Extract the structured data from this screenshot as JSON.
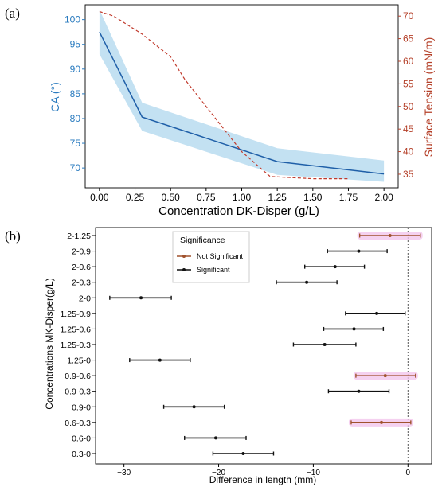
{
  "colors": {
    "ca_line": "#1f5fa8",
    "ca_band": "#b9dcf0",
    "ca_axis": "#2a7bbf",
    "st_line": "#c0392b",
    "st_axis": "#b5412a",
    "sig": "#111111",
    "nonsig": "#a0522d",
    "nonsig_glow": "#f3c6ec",
    "zero_line": "#444444"
  },
  "chart_data": [
    {
      "panel_label": "(a)",
      "type": "line",
      "xlabel": "Concentration DK-Disper (g/L)",
      "ylabel_left": "CA (°)",
      "ylabel_right": "Surface Tension (mN/m)",
      "xlim": [
        -0.1,
        2.1
      ],
      "ylim_left": [
        66,
        103
      ],
      "ylim_right": [
        32,
        72.5
      ],
      "x_ticks": [
        0.0,
        0.25,
        0.5,
        0.75,
        1.0,
        1.25,
        1.5,
        1.75,
        2.0
      ],
      "x_tick_labels": [
        "0.00",
        "0.25",
        "0.50",
        "0.75",
        "1.00",
        "1.25",
        "1.50",
        "1.75",
        "2.00"
      ],
      "y_left_ticks": [
        70,
        75,
        80,
        85,
        90,
        95,
        100
      ],
      "y_right_ticks": [
        35,
        40,
        45,
        50,
        55,
        60,
        65,
        70
      ],
      "series": [
        {
          "name": "CA",
          "axis": "left",
          "style": "solid",
          "x": [
            0.0,
            0.3,
            1.25,
            2.0
          ],
          "y": [
            97.5,
            80.3,
            71.3,
            68.8
          ],
          "band_upper": [
            102.0,
            83.2,
            74.0,
            71.5
          ],
          "band_lower": [
            93.0,
            77.5,
            68.6,
            67.2
          ]
        },
        {
          "name": "Surface Tension",
          "axis": "right",
          "style": "dashed",
          "x": [
            0.0,
            0.1,
            0.3,
            0.5,
            0.6,
            0.75,
            1.0,
            1.2,
            1.5,
            1.75
          ],
          "y": [
            71.0,
            70.0,
            66.0,
            61.0,
            56.0,
            50.0,
            40.0,
            34.5,
            34.0,
            34.0
          ]
        }
      ]
    },
    {
      "panel_label": "(b)",
      "type": "errorbar",
      "xlabel": "Difference in length (mm)",
      "ylabel": "Concentrations MK-Disper(g/L)",
      "xlim": [
        -33,
        2.5
      ],
      "x_ticks": [
        -30,
        -20,
        -10,
        0
      ],
      "x_tick_labels": [
        "−30",
        "−20",
        "−10",
        "0"
      ],
      "legend": {
        "title": "Significance",
        "entries": [
          "Not Significant",
          "Significant"
        ],
        "placement": "top-center"
      },
      "rows": [
        {
          "label": "2-1.25",
          "mean": -1.9,
          "low": -5.1,
          "high": 1.3,
          "significant": false
        },
        {
          "label": "2-0.9",
          "mean": -5.2,
          "low": -8.5,
          "high": -2.2,
          "significant": true
        },
        {
          "label": "2-0.6",
          "mean": -7.7,
          "low": -10.9,
          "high": -4.6,
          "significant": true
        },
        {
          "label": "2-0.3",
          "mean": -10.7,
          "low": -13.9,
          "high": -7.5,
          "significant": true
        },
        {
          "label": "2-0",
          "mean": -28.2,
          "low": -31.5,
          "high": -25.0,
          "significant": true
        },
        {
          "label": "1.25-0.9",
          "mean": -3.3,
          "low": -6.6,
          "high": -0.3,
          "significant": true
        },
        {
          "label": "1.25-0.6",
          "mean": -5.7,
          "low": -8.9,
          "high": -2.6,
          "significant": true
        },
        {
          "label": "1.25-0.3",
          "mean": -8.8,
          "low": -12.1,
          "high": -5.5,
          "significant": true
        },
        {
          "label": "1.25-0",
          "mean": -26.2,
          "low": -29.4,
          "high": -23.0,
          "significant": true
        },
        {
          "label": "0.9-0.6",
          "mean": -2.4,
          "low": -5.5,
          "high": 0.8,
          "significant": false
        },
        {
          "label": "0.9-0.3",
          "mean": -5.2,
          "low": -8.4,
          "high": -2.0,
          "significant": true
        },
        {
          "label": "0.9-0",
          "mean": -22.6,
          "low": -25.8,
          "high": -19.4,
          "significant": true
        },
        {
          "label": "0.6-0.3",
          "mean": -2.8,
          "low": -6.0,
          "high": 0.3,
          "significant": false
        },
        {
          "label": "0.6-0",
          "mean": -20.3,
          "low": -23.6,
          "high": -17.1,
          "significant": true
        },
        {
          "label": "0.3-0",
          "mean": -17.4,
          "low": -20.6,
          "high": -14.2,
          "significant": true
        }
      ]
    }
  ]
}
